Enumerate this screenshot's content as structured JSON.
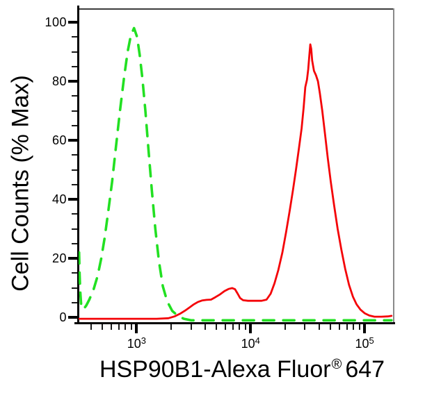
{
  "app": {
    "description": "Flow cytometry overlay histogram",
    "background_color": "#ffffff"
  },
  "chart_data": {
    "type": "line",
    "subtype": "flow-cytometry-histogram-overlay",
    "title": "",
    "xlabel": "HSP90B1-Alexa Fluor® 647",
    "xlabel_parts": {
      "main": "HSP90B1-Alexa Fluor",
      "registered_mark": "®",
      "suffix": "647"
    },
    "ylabel": "Cell Counts (% Max)",
    "legend": "none",
    "grid": "off",
    "x_axis": {
      "scale": "log",
      "min": 310,
      "max": 180000,
      "major_ticks": [
        {
          "value": 1000,
          "label_base": "10",
          "label_exponent": "3"
        },
        {
          "value": 10000,
          "label_base": "10",
          "label_exponent": "4"
        },
        {
          "value": 100000,
          "label_base": "10",
          "label_exponent": "5"
        }
      ],
      "minor_ticks": [
        400,
        500,
        600,
        700,
        800,
        900,
        2000,
        3000,
        4000,
        5000,
        6000,
        7000,
        8000,
        9000,
        20000,
        30000,
        40000,
        50000,
        60000,
        70000,
        80000,
        90000
      ]
    },
    "y_axis": {
      "scale": "linear",
      "min": 0,
      "max": 100,
      "major_ticks": [
        0,
        20,
        40,
        60,
        80,
        100
      ],
      "major_tick_labels": [
        "0",
        "20",
        "40",
        "60",
        "80",
        "100"
      ],
      "minor_tick_step": 5
    },
    "series": [
      {
        "name": "green_dashed_histogram",
        "color": "#22e022",
        "line_style": "dashed",
        "line_width": 3.6,
        "dash_pattern": [
          16,
          13
        ],
        "peak": {
          "x": 950,
          "y_percent": 98
        },
        "points": [
          [
            313,
            22
          ],
          [
            316,
            15
          ],
          [
            320,
            9
          ],
          [
            326,
            4.5
          ],
          [
            334,
            2.8
          ],
          [
            346,
            3.0
          ],
          [
            362,
            4
          ],
          [
            385,
            6
          ],
          [
            420,
            9.5
          ],
          [
            455,
            14
          ],
          [
            490,
            20
          ],
          [
            525,
            27
          ],
          [
            565,
            36
          ],
          [
            610,
            46
          ],
          [
            660,
            58
          ],
          [
            715,
            70
          ],
          [
            775,
            81
          ],
          [
            835,
            90
          ],
          [
            890,
            95.5
          ],
          [
            950,
            98
          ],
          [
            1010,
            95
          ],
          [
            1065,
            89
          ],
          [
            1125,
            81
          ],
          [
            1195,
            70
          ],
          [
            1270,
            57
          ],
          [
            1360,
            43
          ],
          [
            1460,
            30
          ],
          [
            1570,
            19
          ],
          [
            1700,
            10.5
          ],
          [
            1850,
            5.5
          ],
          [
            2050,
            2.2
          ],
          [
            2300,
            0.5
          ],
          [
            2600,
            -0.5
          ],
          [
            3000,
            -1
          ],
          [
            4000,
            -1
          ],
          [
            6000,
            -1
          ],
          [
            10000,
            -1
          ],
          [
            20000,
            -1
          ],
          [
            40000,
            -1
          ],
          [
            80000,
            -1
          ],
          [
            130000,
            -1
          ],
          [
            172000,
            -1
          ]
        ]
      },
      {
        "name": "red_solid_histogram",
        "color": "#f40408",
        "line_style": "solid",
        "line_width": 2.8,
        "dash_pattern": [],
        "peak": {
          "x": 33400,
          "y_percent": 92.5
        },
        "points": [
          [
            313,
            -0.5
          ],
          [
            1000,
            -0.5
          ],
          [
            1500,
            -0.5
          ],
          [
            1900,
            -0.3
          ],
          [
            2150,
            0.3
          ],
          [
            2400,
            1.2
          ],
          [
            2650,
            2.2
          ],
          [
            2900,
            3.3
          ],
          [
            3150,
            4.3
          ],
          [
            3450,
            5.2
          ],
          [
            3750,
            5.7
          ],
          [
            4100,
            5.9
          ],
          [
            4500,
            6.0
          ],
          [
            4900,
            6.8
          ],
          [
            5400,
            7.8
          ],
          [
            5900,
            8.9
          ],
          [
            6400,
            9.6
          ],
          [
            6900,
            9.9
          ],
          [
            7300,
            9.5
          ],
          [
            7700,
            8.0
          ],
          [
            8100,
            6.5
          ],
          [
            8600,
            5.8
          ],
          [
            9500,
            5.6
          ],
          [
            11000,
            5.6
          ],
          [
            12500,
            5.6
          ],
          [
            13800,
            6.0
          ],
          [
            15000,
            8.0
          ],
          [
            16200,
            11.5
          ],
          [
            17500,
            16
          ],
          [
            19000,
            22
          ],
          [
            20500,
            29
          ],
          [
            22000,
            36
          ],
          [
            23500,
            43
          ],
          [
            25000,
            50
          ],
          [
            26500,
            57
          ],
          [
            28000,
            64
          ],
          [
            29200,
            71
          ],
          [
            30200,
            78
          ],
          [
            31200,
            80.5
          ],
          [
            32000,
            84
          ],
          [
            32800,
            89
          ],
          [
            33400,
            92.5
          ],
          [
            34000,
            91
          ],
          [
            34700,
            87
          ],
          [
            36000,
            83.5
          ],
          [
            37500,
            82
          ],
          [
            39000,
            80
          ],
          [
            40500,
            76
          ],
          [
            42500,
            70
          ],
          [
            45000,
            62
          ],
          [
            47500,
            54
          ],
          [
            50500,
            46
          ],
          [
            54000,
            38
          ],
          [
            58000,
            30
          ],
          [
            62500,
            23
          ],
          [
            67500,
            16.5
          ],
          [
            73000,
            11
          ],
          [
            79000,
            7
          ],
          [
            85000,
            4.4
          ],
          [
            92000,
            2.6
          ],
          [
            100000,
            1.4
          ],
          [
            110000,
            0.6
          ],
          [
            122000,
            0.2
          ],
          [
            140000,
            0.2
          ],
          [
            160000,
            0.3
          ],
          [
            172000,
            0.5
          ]
        ]
      }
    ]
  }
}
